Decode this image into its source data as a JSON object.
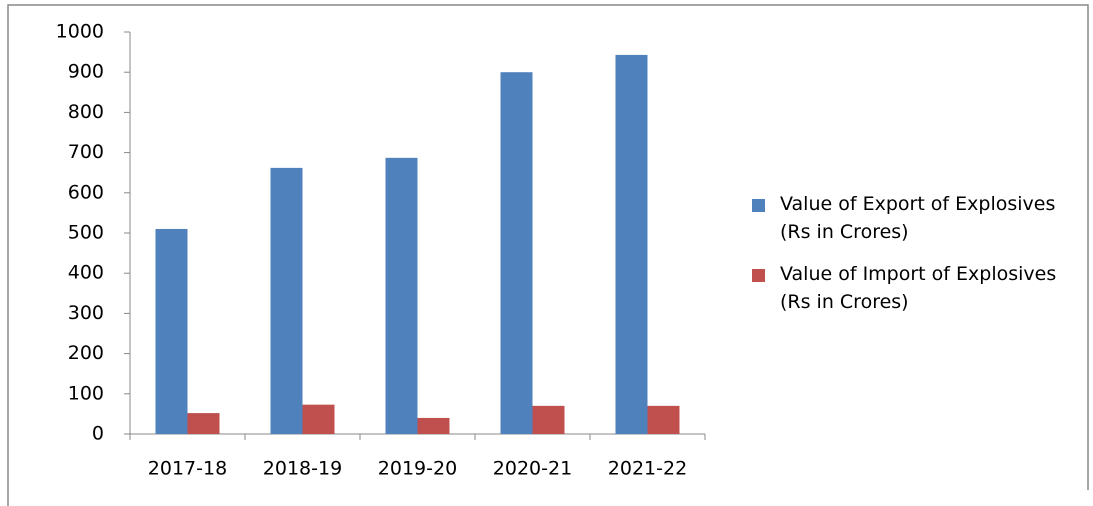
{
  "chart_data": {
    "type": "bar",
    "categories": [
      "2017-18",
      "2018-19",
      "2019-20",
      "2020-21",
      "2021-22"
    ],
    "series": [
      {
        "name": "Value of Export of Explosives (Rs in Crores)",
        "color": "#4f81bd",
        "values": [
          510,
          662,
          687,
          900,
          943
        ]
      },
      {
        "name": "Value of Import of Explosives (Rs in Crores)",
        "color": "#c0504d",
        "values": [
          52,
          73,
          40,
          70,
          70
        ]
      }
    ],
    "ylim": [
      0,
      1000
    ],
    "yticks": [
      0,
      100,
      200,
      300,
      400,
      500,
      600,
      700,
      800,
      900,
      1000
    ],
    "grid": false,
    "legend": "right"
  }
}
